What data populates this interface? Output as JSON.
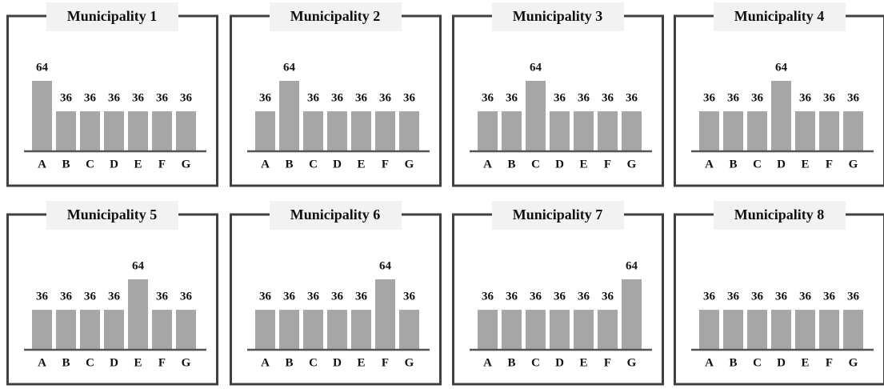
{
  "chart_data": [
    {
      "type": "bar",
      "title": "Municipality 1",
      "categories": [
        "A",
        "B",
        "C",
        "D",
        "E",
        "F",
        "G"
      ],
      "values": [
        64,
        36,
        36,
        36,
        36,
        36,
        36
      ],
      "color": "#a6a6a6"
    },
    {
      "type": "bar",
      "title": "Municipality 2",
      "categories": [
        "A",
        "B",
        "C",
        "D",
        "E",
        "F",
        "G"
      ],
      "values": [
        36,
        64,
        36,
        36,
        36,
        36,
        36
      ],
      "color": "#a6a6a6"
    },
    {
      "type": "bar",
      "title": "Municipality 3",
      "categories": [
        "A",
        "B",
        "C",
        "D",
        "E",
        "F",
        "G"
      ],
      "values": [
        36,
        36,
        64,
        36,
        36,
        36,
        36
      ],
      "color": "#a6a6a6"
    },
    {
      "type": "bar",
      "title": "Municipality 4",
      "categories": [
        "A",
        "B",
        "C",
        "D",
        "E",
        "F",
        "G"
      ],
      "values": [
        36,
        36,
        36,
        64,
        36,
        36,
        36
      ],
      "color": "#a6a6a6"
    },
    {
      "type": "bar",
      "title": "Municipality 5",
      "categories": [
        "A",
        "B",
        "C",
        "D",
        "E",
        "F",
        "G"
      ],
      "values": [
        36,
        36,
        36,
        36,
        64,
        36,
        36
      ],
      "color": "#a6a6a6"
    },
    {
      "type": "bar",
      "title": "Municipality 6",
      "categories": [
        "A",
        "B",
        "C",
        "D",
        "E",
        "F",
        "G"
      ],
      "values": [
        36,
        36,
        36,
        36,
        36,
        64,
        36
      ],
      "color": "#a6a6a6"
    },
    {
      "type": "bar",
      "title": "Municipality 7",
      "categories": [
        "A",
        "B",
        "C",
        "D",
        "E",
        "F",
        "G"
      ],
      "values": [
        36,
        36,
        36,
        36,
        36,
        36,
        64
      ],
      "color": "#a6a6a6"
    },
    {
      "type": "bar",
      "title": "Municipality 8",
      "categories": [
        "A",
        "B",
        "C",
        "D",
        "E",
        "F",
        "G"
      ],
      "values": [
        36,
        36,
        36,
        36,
        36,
        36,
        36
      ],
      "color": "#a6a6a6"
    }
  ]
}
